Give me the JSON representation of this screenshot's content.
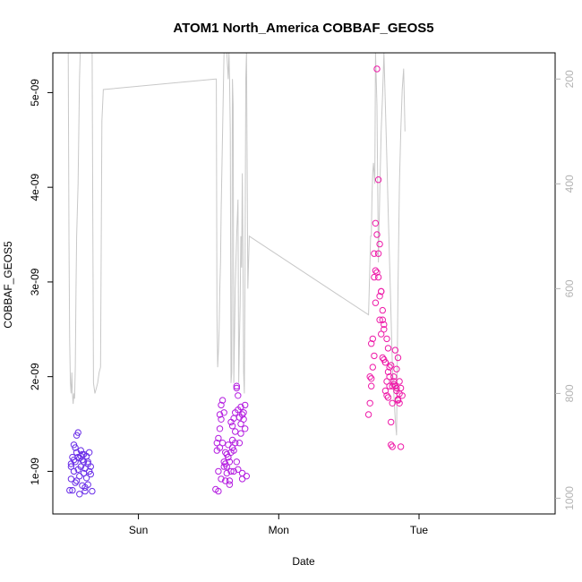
{
  "chart_data": {
    "type": "scatter",
    "title": "ATOM1 North_America COBBAF_GEOS5",
    "xlabel": "Date",
    "ylabel": "COBBAF_GEOS5",
    "x_ticks": [
      "Sun",
      "Mon",
      "Tue"
    ],
    "x_tick_positions": [
      1,
      2,
      3
    ],
    "xlim": [
      0.39,
      3.97
    ],
    "y_ticks": [
      "1e-09",
      "2e-09",
      "3e-09",
      "4e-09",
      "5e-09"
    ],
    "y_tick_values": [
      1e-09,
      2e-09,
      3e-09,
      4e-09,
      5e-09
    ],
    "ylim": [
      5.5e-10,
      5.42e-09
    ],
    "y2_ticks": [
      "200",
      "400",
      "600",
      "800",
      "1000"
    ],
    "y2_tick_values": [
      200,
      400,
      600,
      800,
      1000
    ],
    "y2lim": [
      1030,
      150
    ],
    "y2_reversed": true,
    "grid": false,
    "colors": {
      "early": "#6a2ee8",
      "middle": "#b41ee0",
      "late": "#ee1aa8",
      "pressure_line": "#c8c8c8",
      "right_axis": "#b3b3b3"
    },
    "scatter_clusters": [
      {
        "x": [
          0.51,
          0.52,
          0.52,
          0.53,
          0.53,
          0.54,
          0.54,
          0.55,
          0.55,
          0.56,
          0.56,
          0.57,
          0.57,
          0.58,
          0.58,
          0.59,
          0.59,
          0.6,
          0.6,
          0.61,
          0.61,
          0.62,
          0.62,
          0.63,
          0.63,
          0.64,
          0.64,
          0.65,
          0.65,
          0.66,
          0.66,
          0.67,
          0.52,
          0.54,
          0.56,
          0.58,
          0.6,
          0.62,
          0.64,
          0.55,
          0.57,
          0.59,
          0.61
        ],
        "y": [
          8e-10,
          9.2e-10,
          1.05e-09,
          1.15e-09,
          8e-10,
          1.28e-09,
          1e-09,
          8.8e-10,
          1.1e-09,
          1.2e-09,
          1.38e-09,
          1.41e-09,
          1.15e-09,
          7.6e-10,
          9.5e-10,
          1.22e-09,
          1.05e-09,
          1.12e-09,
          8.5e-10,
          9.8e-10,
          1.18e-09,
          1.03e-09,
          7.9e-10,
          1.16e-09,
          9.3e-10,
          1.08e-09,
          8.6e-10,
          1.2e-09,
          1e-09,
          1.05e-09,
          9.7e-10,
          7.9e-10,
          1.08e-09,
          1.12e-09,
          9e-10,
          1.14e-09,
          1.18e-09,
          8.3e-10,
          1.1e-09,
          1.25e-09,
          1.02e-09,
          1.16e-09,
          1.1e-09
        ]
      },
      {
        "x": [
          1.55,
          1.56,
          1.56,
          1.57,
          1.57,
          1.58,
          1.58,
          1.59,
          1.59,
          1.6,
          1.6,
          1.61,
          1.61,
          1.62,
          1.62,
          1.63,
          1.63,
          1.64,
          1.64,
          1.65,
          1.65,
          1.66,
          1.66,
          1.67,
          1.67,
          1.68,
          1.68,
          1.69,
          1.69,
          1.7,
          1.7,
          1.71,
          1.71,
          1.72,
          1.72,
          1.73,
          1.73,
          1.74,
          1.74,
          1.75,
          1.75,
          1.76,
          1.76,
          1.77,
          1.57,
          1.59,
          1.61,
          1.63,
          1.65,
          1.67,
          1.69,
          1.71,
          1.73,
          1.62,
          1.66,
          1.7,
          1.74,
          1.58,
          1.64,
          1.68
        ],
        "y": [
          8.1e-10,
          1.22e-09,
          1.3e-09,
          7.9e-10,
          1e-09,
          1.45e-09,
          1.6e-09,
          1.55e-09,
          1.7e-09,
          1.75e-09,
          1.3e-09,
          1.62e-09,
          1.1e-09,
          9e-10,
          1.2e-09,
          1.05e-09,
          9.8e-10,
          1.28e-09,
          1.15e-09,
          1.1e-09,
          8.6e-10,
          1.2e-09,
          1e-09,
          1.33e-09,
          1.48e-09,
          1.56e-09,
          1.22e-09,
          1.62e-09,
          1.42e-09,
          1.88e-09,
          1.9e-09,
          1.8e-09,
          1.02e-09,
          1.3e-09,
          1.57e-09,
          1.68e-09,
          1.5e-09,
          9.2e-10,
          9.8e-10,
          1.62e-09,
          1.55e-09,
          1.45e-09,
          1.7e-09,
          9.5e-10,
          1.35e-09,
          9.2e-10,
          1.05e-09,
          1.18e-09,
          9e-10,
          1.25e-09,
          1.3e-09,
          1.65e-09,
          1.4e-09,
          1.08e-09,
          1.52e-09,
          1.1e-09,
          1.6e-09,
          1.25e-09,
          1.15e-09,
          1e-09
        ]
      },
      {
        "x": [
          2.64,
          2.65,
          2.65,
          2.66,
          2.66,
          2.67,
          2.67,
          2.68,
          2.68,
          2.69,
          2.69,
          2.7,
          2.7,
          2.71,
          2.71,
          2.72,
          2.72,
          2.73,
          2.73,
          2.74,
          2.74,
          2.75,
          2.75,
          2.76,
          2.76,
          2.77,
          2.77,
          2.78,
          2.78,
          2.79,
          2.79,
          2.8,
          2.8,
          2.81,
          2.81,
          2.82,
          2.82,
          2.83,
          2.83,
          2.84,
          2.84,
          2.85,
          2.85,
          2.86,
          2.86,
          2.87,
          2.87,
          2.88,
          2.66,
          2.68,
          2.7,
          2.72,
          2.74,
          2.76,
          2.78,
          2.8,
          2.82,
          2.84,
          2.86,
          2.69,
          2.73,
          2.77,
          2.81,
          2.85,
          2.71,
          2.75,
          2.79
        ],
        "y": [
          1.6e-09,
          1.72e-09,
          2e-09,
          2.35e-09,
          1.9e-09,
          2.4e-09,
          2.1e-09,
          3.3e-09,
          3.05e-09,
          3.62e-09,
          2.78e-09,
          5.25e-09,
          3.5e-09,
          3.3e-09,
          4.08e-09,
          2.6e-09,
          3.4e-09,
          2.9e-09,
          2.45e-09,
          2.7e-09,
          2.2e-09,
          2.55e-09,
          2.18e-09,
          2.15e-09,
          1.85e-09,
          1.8e-09,
          1.95e-09,
          2.3e-09,
          2.05e-09,
          1.9e-09,
          2.1e-09,
          1.28e-09,
          1.52e-09,
          1.26e-09,
          1.72e-09,
          1.95e-09,
          2e-09,
          2.28e-09,
          1.9e-09,
          2.08e-09,
          1.85e-09,
          1.75e-09,
          2.2e-09,
          1.72e-09,
          1.95e-09,
          1.88e-09,
          1.26e-09,
          1.8e-09,
          1.98e-09,
          2.22e-09,
          3.1e-09,
          2.85e-09,
          2.6e-09,
          2.15e-09,
          1.78e-09,
          2.12e-09,
          1.92e-09,
          1.88e-09,
          1.82e-09,
          3.12e-09,
          2.9e-09,
          2.4e-09,
          1.9e-09,
          1.76e-09,
          3.05e-09,
          2.5e-09,
          2e-09
        ]
      }
    ],
    "pressure_line": {
      "axis": "right",
      "x": [
        0.39,
        0.5,
        0.505,
        0.51,
        0.515,
        0.52,
        0.525,
        0.53,
        0.535,
        0.54,
        0.545,
        0.55,
        0.555,
        0.56,
        0.565,
        0.57,
        0.575,
        0.58,
        0.585,
        0.59,
        0.6,
        0.61,
        0.62,
        0.63,
        0.64,
        0.65,
        0.66,
        0.67,
        0.68,
        0.69,
        0.7,
        0.71,
        0.72,
        0.73,
        0.74,
        0.75,
        1.55,
        1.555,
        1.56,
        1.565,
        1.57,
        1.575,
        1.58,
        1.585,
        1.59,
        1.6,
        1.61,
        1.62,
        1.63,
        1.64,
        1.645,
        1.65,
        1.655,
        1.66,
        1.665,
        1.67,
        1.675,
        1.68,
        1.69,
        1.7,
        1.71,
        1.715,
        1.72,
        1.725,
        1.73,
        1.735,
        1.74,
        1.745,
        1.75,
        1.755,
        1.76,
        1.765,
        1.77,
        1.78,
        1.79,
        2.64,
        2.645,
        2.65,
        2.655,
        2.66,
        2.665,
        2.67,
        2.675,
        2.68,
        2.685,
        2.69,
        2.7,
        2.71,
        2.72,
        2.73,
        2.74,
        2.75,
        2.76,
        2.77,
        2.78,
        2.79,
        2.8,
        2.81,
        2.82,
        2.83,
        2.84,
        2.85,
        2.86,
        2.87,
        2.88,
        2.89,
        2.9
      ],
      "y": [
        150,
        150,
        500,
        700,
        780,
        800,
        760,
        800,
        820,
        800,
        810,
        750,
        600,
        500,
        450,
        400,
        300,
        200,
        150,
        150,
        150,
        150,
        150,
        150,
        150,
        150,
        150,
        150,
        780,
        800,
        790,
        780,
        760,
        750,
        280,
        220,
        200,
        200,
        650,
        750,
        720,
        680,
        600,
        550,
        450,
        300,
        150,
        150,
        150,
        200,
        150,
        200,
        300,
        780,
        760,
        200,
        250,
        780,
        600,
        500,
        430,
        780,
        700,
        630,
        500,
        560,
        380,
        520,
        760,
        800,
        560,
        200,
        150,
        600,
        500,
        650,
        600,
        550,
        500,
        500,
        420,
        380,
        360,
        380,
        400,
        150,
        250,
        550,
        420,
        300,
        230,
        150,
        250,
        350,
        450,
        550,
        650,
        750,
        800,
        850,
        880,
        600,
        400,
        300,
        220,
        180,
        300
      ],
      "note_segments_connect_across_days": true
    }
  }
}
